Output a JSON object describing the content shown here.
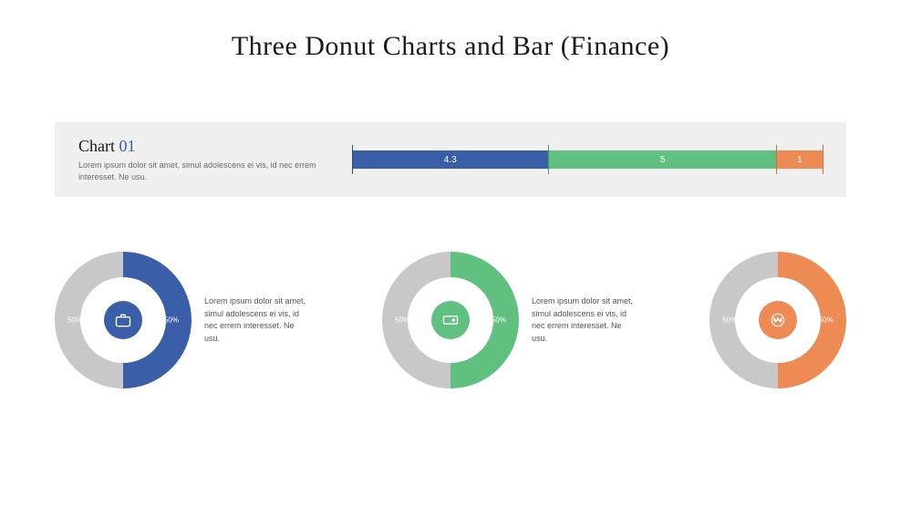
{
  "title": "Three Donut Charts and Bar (Finance)",
  "bar_panel": {
    "background_color": "#f0f0f0",
    "title_prefix": "Chart ",
    "title_number": "01",
    "title_number_color": "#3a5fa8",
    "description": "Lorem ipsum dolor sit amet, simul adolescens ei vis, id nec errem interesset. Ne usu.",
    "chart": {
      "type": "bar",
      "total": 10.3,
      "segments": [
        {
          "value": 4.3,
          "label": "4.3",
          "color": "#3a5fa8"
        },
        {
          "value": 5,
          "label": "5",
          "color": "#5fc080"
        },
        {
          "value": 1,
          "label": "1",
          "color": "#ee8b55"
        }
      ],
      "tick_color_overrides": [
        "#2f4d8a",
        "#3fa060",
        "#d46f39",
        "#d46f39"
      ]
    }
  },
  "donuts": [
    {
      "type": "donut",
      "left_pct": "50%",
      "right_pct": "50%",
      "left_color": "#c8c8c8",
      "right_color": "#3a5fa8",
      "inner_circle_color": "#3a5fa8",
      "icon": "briefcase",
      "icon_stroke": "#ffffff",
      "text": "Lorem ipsum dolor sit amet, simul adolescens ei vis, id nec errem interesset. Ne usu."
    },
    {
      "type": "donut",
      "left_pct": "50%",
      "right_pct": "50%",
      "left_color": "#c8c8c8",
      "right_color": "#5fc080",
      "inner_circle_color": "#5fc080",
      "icon": "ticket",
      "icon_stroke": "#ffffff",
      "text": "Lorem ipsum dolor sit amet, simul adolescens ei vis, id nec errem interesset. Ne usu."
    },
    {
      "type": "donut",
      "left_pct": "50%",
      "right_pct": "50%",
      "left_color": "#c8c8c8",
      "right_color": "#ee8b55",
      "inner_circle_color": "#ee8b55",
      "icon": "won-coin",
      "icon_stroke": "#ffffff",
      "text": ""
    }
  ],
  "styling": {
    "page_background": "#ffffff",
    "title_fontsize": 30,
    "desc_fontsize": 9,
    "donut_outer_radius": 75,
    "donut_ring_thickness": 28,
    "donut_inner_gap_radius": 32,
    "donut_center_radius": 21
  }
}
